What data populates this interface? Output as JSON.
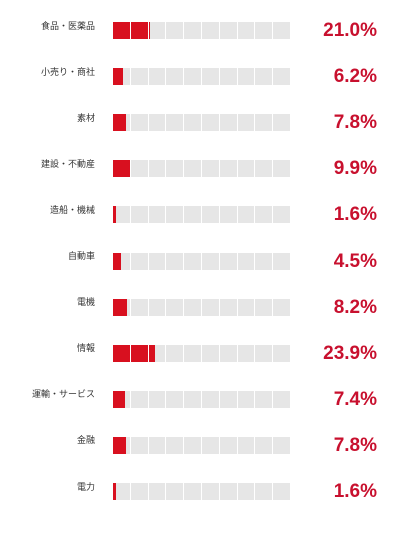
{
  "chart_data": {
    "type": "bar",
    "orientation": "horizontal",
    "segments_per_bar": 10,
    "categories": [
      "食品・医薬品",
      "小売り・商社",
      "素材",
      "建設・不動産",
      "造船・機械",
      "自動車",
      "電機",
      "情報",
      "運輸・サービス",
      "金融",
      "電力"
    ],
    "values": [
      21.0,
      6.2,
      7.8,
      9.9,
      1.6,
      4.5,
      8.2,
      23.9,
      7.4,
      7.8,
      1.6
    ],
    "value_labels": [
      "21.0%",
      "6.2%",
      "7.8%",
      "9.9%",
      "1.6%",
      "4.5%",
      "8.2%",
      "23.9%",
      "7.4%",
      "7.8%",
      "1.6%"
    ],
    "colors": {
      "fill": "#d8101f",
      "empty": "#e6e6e6",
      "value_text": "#c8102e",
      "category_text": "#333333"
    }
  }
}
